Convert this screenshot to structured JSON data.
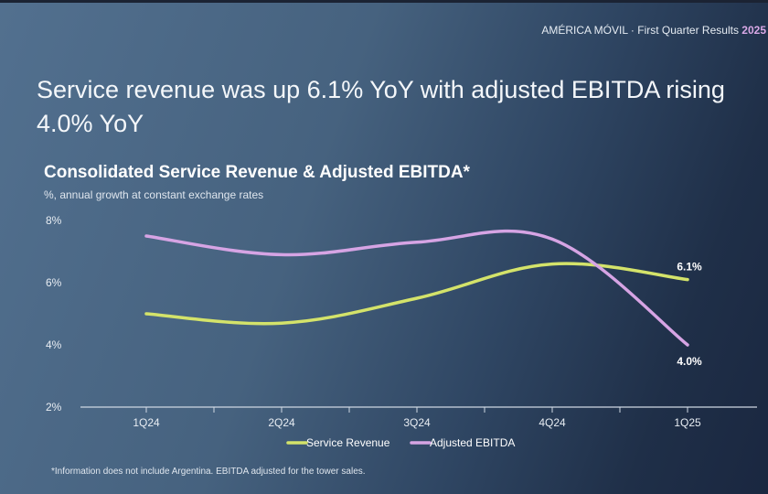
{
  "header": {
    "company": "AMÉRICA MÓVIL",
    "separator": "·",
    "report": "First Quarter Results",
    "year": "2025"
  },
  "headline": {
    "line1": "Service revenue was up 6.1% YoY with adjusted EBITDA rising",
    "line2": "4.0% YoY"
  },
  "footnote": "*Information does not include Argentina. EBITDA adjusted for the tower sales.",
  "colors": {
    "service": "#d4e36a",
    "ebitda": "#d6a4e4",
    "axis": "#cfd8e3",
    "text": "#ffffff"
  },
  "chart_data": {
    "type": "line",
    "title": "Consolidated Service Revenue & Adjusted EBITDA*",
    "subtitle": "%, annual growth at constant exchange rates",
    "categories": [
      "1Q24",
      "2Q24",
      "3Q24",
      "4Q24",
      "1Q25"
    ],
    "ylim": [
      2,
      8
    ],
    "yticks": [
      2,
      4,
      6,
      8
    ],
    "ytick_labels": [
      "2%",
      "4%",
      "6%",
      "8%"
    ],
    "series": [
      {
        "name": "Service Revenue",
        "color": "#d4e36a",
        "values": [
          5.0,
          4.7,
          5.5,
          6.6,
          6.1
        ]
      },
      {
        "name": "Adjusted EBITDA",
        "color": "#d6a4e4",
        "values": [
          7.5,
          6.9,
          7.3,
          7.4,
          4.0
        ]
      }
    ],
    "data_labels": [
      {
        "series": 0,
        "index": 4,
        "text": "6.1%"
      },
      {
        "series": 1,
        "index": 4,
        "text": "4.0%"
      }
    ],
    "legend": "bottom-center",
    "grid": false
  }
}
